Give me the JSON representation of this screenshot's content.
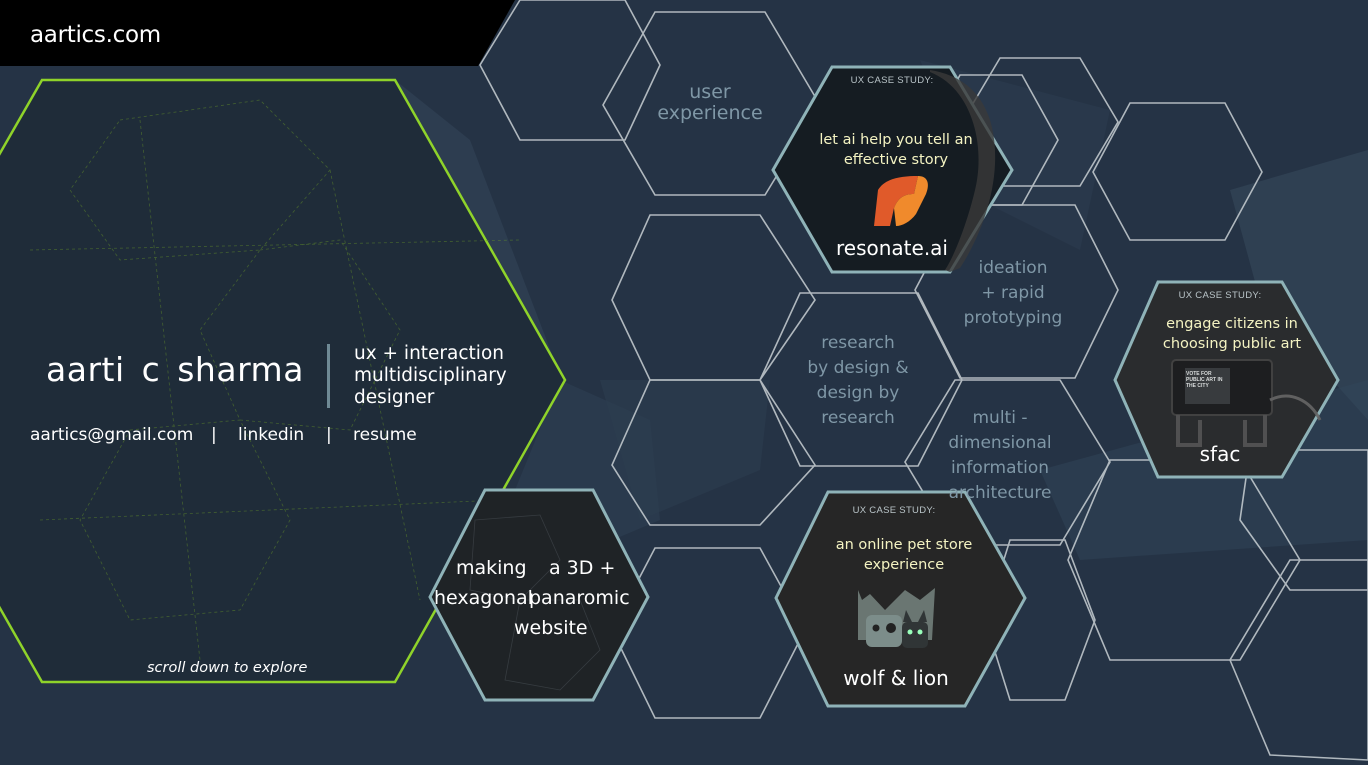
{
  "header": {
    "site_name": "aartics.com"
  },
  "intro": {
    "name": "aarti c sharma",
    "role": "ux + interaction multidisciplinary designer",
    "email": "aartics@gmail.com",
    "separator": "|",
    "linkedin": "linkedin",
    "resume": "resume",
    "scroll_hint": "scroll down to explore"
  },
  "skills": {
    "user_experience": "user experience",
    "research_line1": "research",
    "research_line2": "by design &",
    "research_line3": "design by",
    "research_line4": "research",
    "ideation_line1": "ideation",
    "ideation_line2": "+ rapid",
    "ideation_line3": "prototyping",
    "info_line1": "multi -",
    "info_line2": "dimensional",
    "info_line3": "information",
    "info_line4": "architecture"
  },
  "case_studies": [
    {
      "label": "UX CASE STUDY:",
      "tagline": "let ai help you tell an effective story",
      "title": "resonate.ai"
    },
    {
      "label": "UX CASE STUDY:",
      "tagline": "engage citizens in choosing public art",
      "title": "sfac",
      "image_text": "VOTE FOR PUBLIC ART IN THE CITY"
    },
    {
      "label": "UX CASE STUDY:",
      "tagline": "an online pet store experience",
      "title": "wolf & lion"
    }
  ],
  "project": {
    "line1a": "making",
    "line1b": "a 3D +",
    "line2a": "hexagonal",
    "line2b": "panaromic",
    "line3": "website"
  },
  "colors": {
    "background": "#253345",
    "accent_green": "#8fd32a",
    "hex_stroke": "#c9d0d4",
    "card_stroke": "#8fb3b8",
    "tagline": "#f4f3c2"
  }
}
